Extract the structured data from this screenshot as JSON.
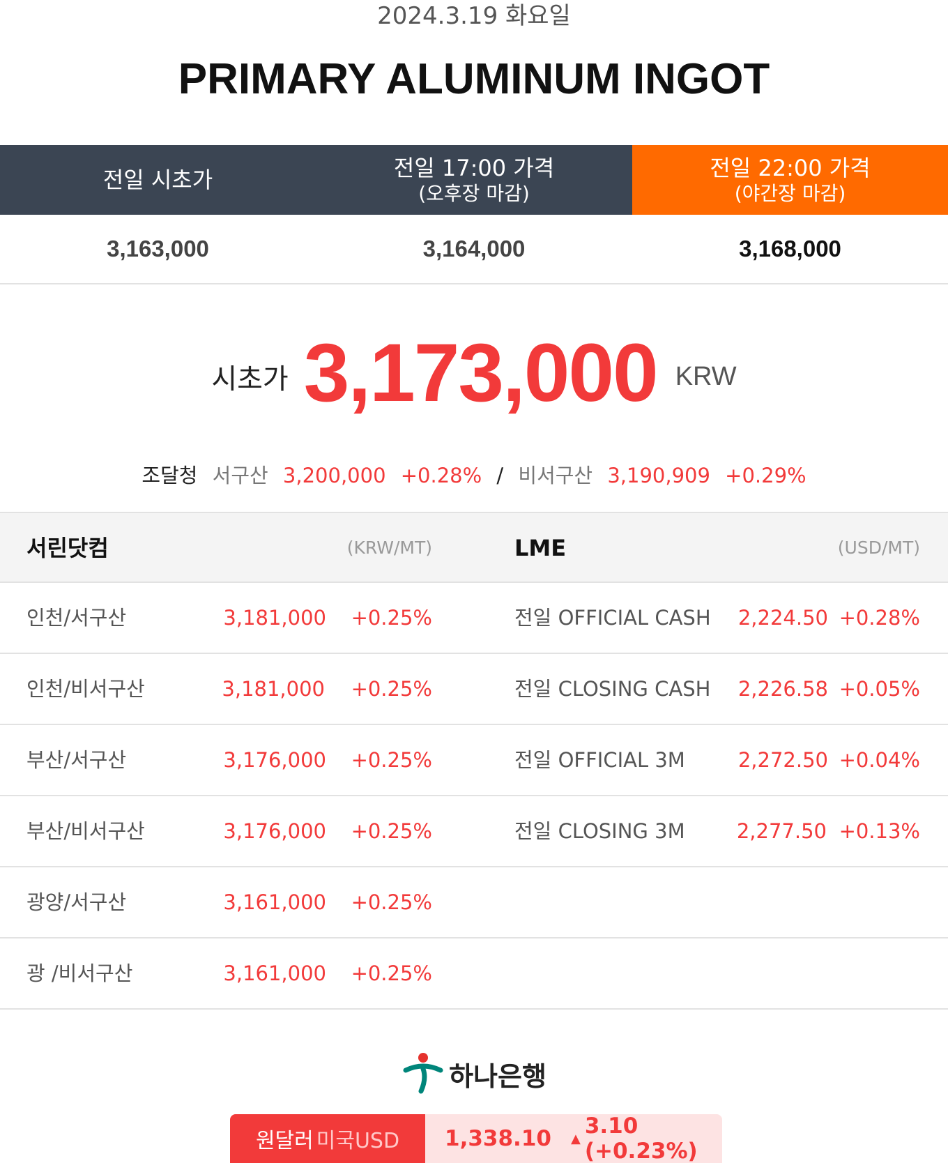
{
  "date": "2024.3.19 화요일",
  "title": "PRIMARY ALUMINUM INGOT",
  "header": {
    "col1": "전일 시초가",
    "col2_main": "전일 17:00 가격",
    "col2_sub": "(오후장 마감)",
    "col3_main": "전일 22:00 가격",
    "col3_sub": "(야간장 마감)"
  },
  "prev_prices": {
    "open": "3,163,000",
    "p1700": "3,164,000",
    "p2200": "3,168,000"
  },
  "opening": {
    "label": "시초가",
    "value": "3,173,000",
    "unit": "KRW"
  },
  "pps": {
    "label": "조달청",
    "western_label": "서구산",
    "western_price": "3,200,000",
    "western_change": "+0.28%",
    "separator": "/",
    "nonwestern_label": "비서구산",
    "nonwestern_price": "3,190,909",
    "nonwestern_change": "+0.29%"
  },
  "table": {
    "left_title": "서린닷컴",
    "left_unit": "(KRW/MT)",
    "right_title": "LME",
    "right_unit": "(USD/MT)",
    "left_rows": [
      {
        "name": "인천/서구산",
        "price": "3,181,000",
        "change": "+0.25%"
      },
      {
        "name": "인천/비서구산",
        "price": "3,181,000",
        "change": "+0.25%"
      },
      {
        "name": "부산/서구산",
        "price": "3,176,000",
        "change": "+0.25%"
      },
      {
        "name": "부산/비서구산",
        "price": "3,176,000",
        "change": "+0.25%"
      },
      {
        "name": "광양/서구산",
        "price": "3,161,000",
        "change": "+0.25%"
      },
      {
        "name": "광 /비서구산",
        "price": "3,161,000",
        "change": "+0.25%"
      }
    ],
    "right_rows": [
      {
        "name": "전일 OFFICIAL CASH",
        "price": "2,224.50",
        "change": "+0.28%"
      },
      {
        "name": "전일 CLOSING CASH",
        "price": "2,226.58",
        "change": "+0.05%"
      },
      {
        "name": "전일 OFFICIAL 3M",
        "price": "2,272.50",
        "change": "+0.04%"
      },
      {
        "name": "전일 CLOSING 3M",
        "price": "2,277.50",
        "change": "+0.13%"
      }
    ]
  },
  "bank": {
    "name": "하나은행",
    "logo_icon": "hana-bank-logo-icon"
  },
  "fx": {
    "label": "원달러",
    "sub": "미국USD",
    "rate": "1,338.10",
    "arrow": "▲",
    "change": "3.10 (+0.23%)"
  },
  "colors": {
    "dark_header": "#3b4553",
    "accent_orange": "#ff6a00",
    "up_red": "#f23a3a"
  }
}
